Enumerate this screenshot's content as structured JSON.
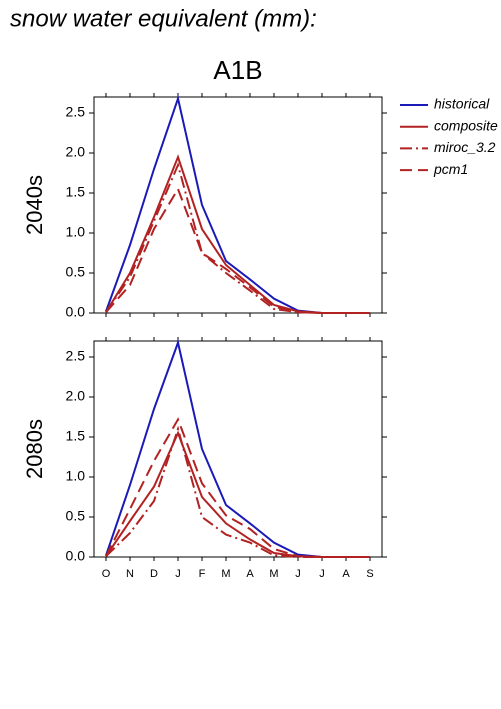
{
  "title": "snow water equivalent (mm):",
  "subtitle": "A1B",
  "chart_data": [
    {
      "type": "line",
      "y_label": "2040s",
      "legend": "outside-right",
      "categories": [
        null,
        null,
        null,
        null,
        null,
        null,
        null,
        null,
        null,
        null,
        null,
        null
      ],
      "ylim": [
        0,
        2.7
      ],
      "yticks": [
        {
          "value": 0,
          "label": "0.0"
        },
        0.5,
        {
          "value": 1,
          "label": "1.0"
        },
        1.5,
        {
          "value": 2,
          "label": "2.0"
        },
        2.5
      ],
      "series": [
        {
          "name": "historical",
          "color": "#1a1ab8",
          "dash": "solid",
          "values": [
            0.02,
            0.85,
            1.8,
            2.68,
            1.35,
            0.65,
            0.42,
            0.18,
            0.03,
            0,
            0,
            0
          ]
        },
        {
          "name": "composite",
          "color": "#b22222",
          "dash": "solid",
          "values": [
            0.01,
            0.5,
            1.2,
            1.95,
            1.05,
            0.6,
            0.35,
            0.1,
            0.02,
            0,
            0,
            0
          ]
        },
        {
          "name": "miroc_3.2",
          "color": "#b22222",
          "dash": "dash-dot",
          "values": [
            0.01,
            0.45,
            1.15,
            1.85,
            0.75,
            0.5,
            0.28,
            0.05,
            0.01,
            0,
            0,
            0
          ]
        },
        {
          "name": "pcm1",
          "color": "#b22222",
          "dash": "dash",
          "values": [
            0.01,
            0.35,
            1.05,
            1.55,
            0.75,
            0.55,
            0.32,
            0.08,
            0.01,
            0,
            0,
            0
          ]
        }
      ]
    },
    {
      "type": "line",
      "y_label": "2080s",
      "categories": [
        "O",
        "N",
        "D",
        "J",
        "F",
        "M",
        "A",
        "M",
        "J",
        "J",
        "A",
        "S"
      ],
      "ylim": [
        0,
        2.7
      ],
      "yticks": [
        {
          "value": 0,
          "label": "0.0"
        },
        0.5,
        {
          "value": 1,
          "label": "1.0"
        },
        1.5,
        {
          "value": 2,
          "label": "2.0"
        },
        2.5
      ],
      "series": [
        {
          "color": "#1a1ab8",
          "dash": "solid",
          "values": [
            0.02,
            0.9,
            1.85,
            2.68,
            1.35,
            0.65,
            0.42,
            0.18,
            0.03,
            0,
            0,
            0
          ]
        },
        {
          "color": "#b22222",
          "dash": "solid",
          "values": [
            0.01,
            0.45,
            0.88,
            1.55,
            0.75,
            0.42,
            0.22,
            0.05,
            0.01,
            0,
            0,
            0
          ]
        },
        {
          "color": "#b22222",
          "dash": "dash-dot",
          "values": [
            0.01,
            0.3,
            0.7,
            1.6,
            0.5,
            0.28,
            0.18,
            0.02,
            0,
            0,
            0,
            0
          ]
        },
        {
          "color": "#b22222",
          "dash": "dash",
          "values": [
            0.01,
            0.6,
            1.2,
            1.72,
            0.92,
            0.52,
            0.35,
            0.1,
            0.01,
            0,
            0,
            0
          ]
        }
      ]
    }
  ]
}
